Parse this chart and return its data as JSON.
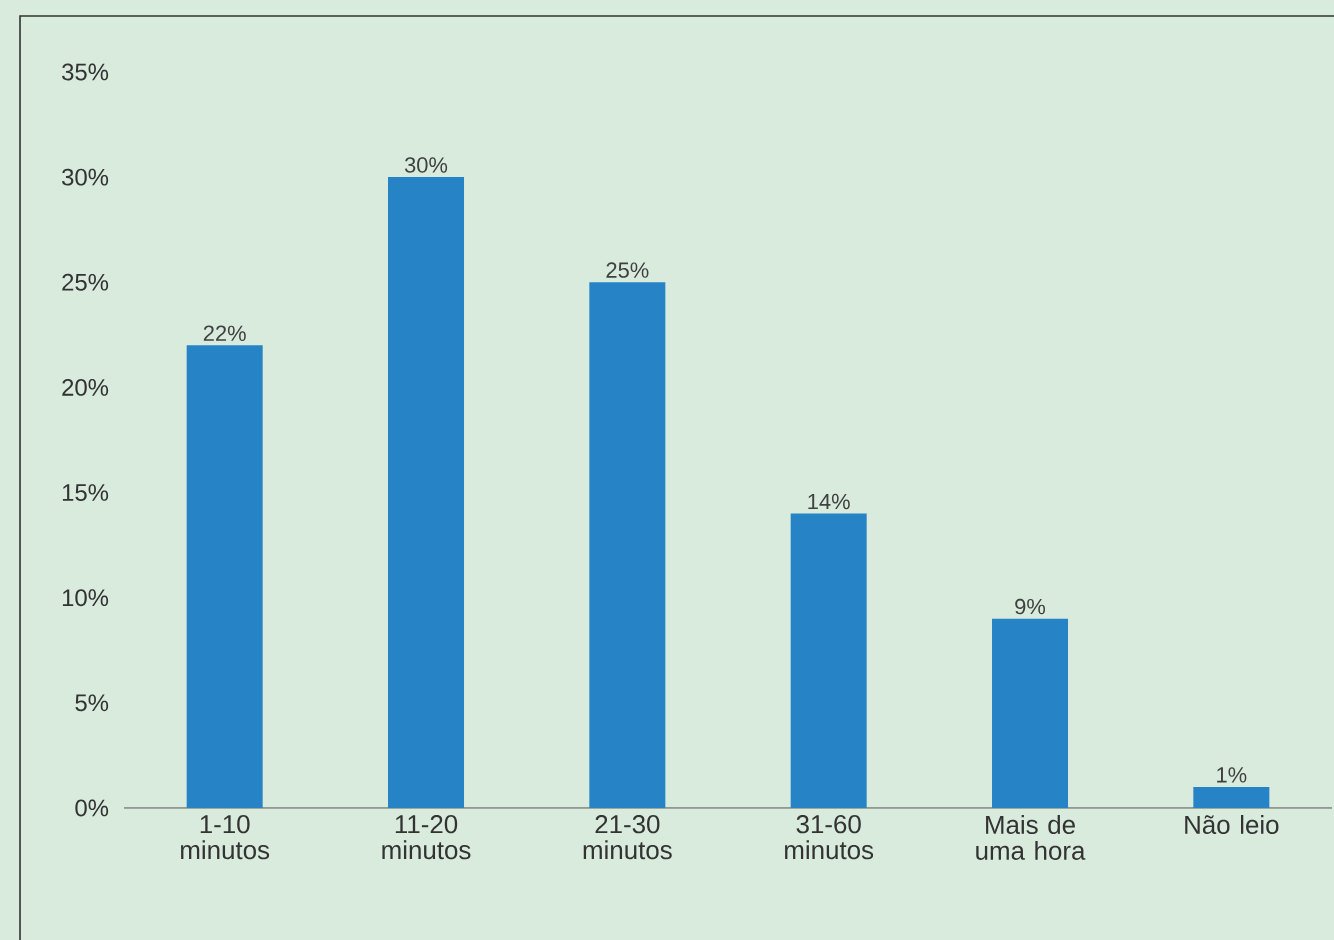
{
  "chart_data": {
    "type": "bar",
    "categories": [
      "1-10 minutos",
      "11-20 minutos",
      "21-30 minutos",
      "31-60 minutos",
      "Mais de uma hora",
      "Não leio"
    ],
    "values": [
      22,
      30,
      25,
      14,
      9,
      1
    ],
    "color": "#2683c6",
    "ylim": [
      0,
      35
    ],
    "yticks": [
      {
        "value": 0,
        "label": "0%"
      },
      {
        "value": 5,
        "label": "5%"
      },
      {
        "value": 10,
        "label": "10%"
      },
      {
        "value": 15,
        "label": "15%"
      },
      {
        "value": 20,
        "label": "20%"
      },
      {
        "value": 25,
        "label": "25%"
      },
      {
        "value": 30,
        "label": "30%"
      },
      {
        "value": 35,
        "label": "35%"
      }
    ],
    "data_labels": true,
    "value_labels": [
      "22%",
      "30%",
      "25%",
      "14%",
      "9%",
      "1%"
    ],
    "grid": false,
    "legend": false
  }
}
